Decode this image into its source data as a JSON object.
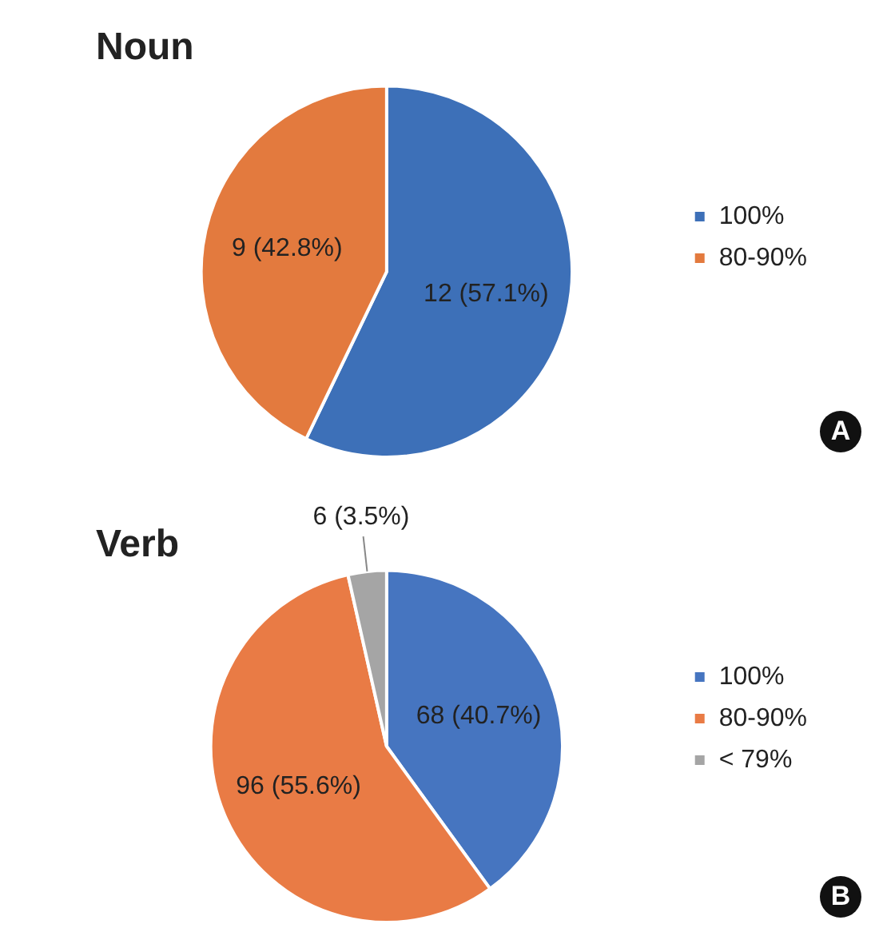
{
  "chart_data": [
    {
      "type": "pie",
      "title": "Noun",
      "categories": [
        "100%",
        "80-90%"
      ],
      "values": [
        12,
        9
      ],
      "colors": [
        "#3d70b8",
        "#e37a3e"
      ],
      "value_labels": [
        "12 (57.1%)",
        "9 (42.8%)"
      ],
      "legend": "right",
      "annotations": [
        "A"
      ]
    },
    {
      "type": "pie",
      "title": "Verb",
      "categories": [
        "100%",
        "80-90%",
        "< 79%"
      ],
      "values": [
        68,
        96,
        6
      ],
      "colors": [
        "#4675c0",
        "#e97b45",
        "#a5a5a5"
      ],
      "value_labels": [
        "68 (40.7%)",
        "96 (55.6%)",
        "6 (3.5%)"
      ],
      "legend": "right",
      "annotations": [
        "B"
      ]
    }
  ]
}
